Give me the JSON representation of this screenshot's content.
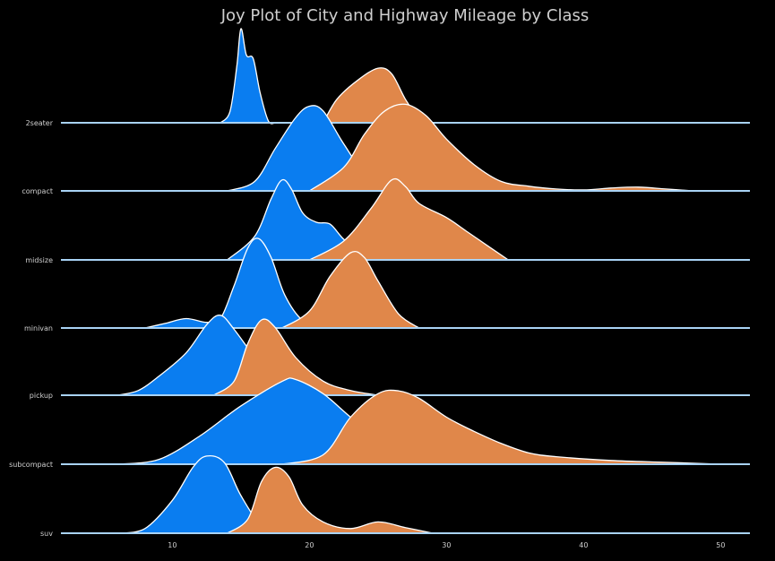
{
  "chart_data": {
    "type": "joyplot",
    "title": "Joy Plot of City and Highway Mileage by Class",
    "xlim": [
      2,
      52
    ],
    "xticks": [
      10,
      20,
      30,
      40,
      50
    ],
    "categories": [
      "2seater",
      "compact",
      "midsize",
      "minivan",
      "pickup",
      "subcompact",
      "suv"
    ],
    "series_colors": {
      "cty": "#0a7df0",
      "hwy": "#e0874a"
    },
    "series": [
      {
        "category": "2seater",
        "cty": [
          [
            13.5,
            0
          ],
          [
            14.2,
            0.12
          ],
          [
            14.7,
            0.6
          ],
          [
            15.0,
            1.0
          ],
          [
            15.4,
            0.72
          ],
          [
            15.9,
            0.68
          ],
          [
            16.4,
            0.32
          ],
          [
            17.0,
            0.02
          ],
          [
            17.5,
            0
          ]
        ],
        "hwy": [
          [
            21.0,
            0
          ],
          [
            22.0,
            0.25
          ],
          [
            23.5,
            0.45
          ],
          [
            25.0,
            0.58
          ],
          [
            26.0,
            0.52
          ],
          [
            27.0,
            0.25
          ],
          [
            28.0,
            0.05
          ],
          [
            28.6,
            0
          ]
        ]
      },
      {
        "category": "compact",
        "cty": [
          [
            14,
            0
          ],
          [
            16,
            0.1
          ],
          [
            17.5,
            0.45
          ],
          [
            19,
            0.78
          ],
          [
            20,
            0.9
          ],
          [
            21,
            0.85
          ],
          [
            22.5,
            0.5
          ],
          [
            24,
            0.2
          ],
          [
            26,
            0.05
          ],
          [
            29,
            0.02
          ],
          [
            32,
            0.03
          ],
          [
            34,
            0.02
          ],
          [
            37,
            0
          ]
        ],
        "hwy": [
          [
            20,
            0
          ],
          [
            22.5,
            0.25
          ],
          [
            24,
            0.6
          ],
          [
            25.5,
            0.85
          ],
          [
            27,
            0.92
          ],
          [
            28.5,
            0.8
          ],
          [
            30,
            0.55
          ],
          [
            32,
            0.28
          ],
          [
            34,
            0.1
          ],
          [
            36,
            0.05
          ],
          [
            38,
            0.02
          ],
          [
            40,
            0.01
          ],
          [
            42,
            0.03
          ],
          [
            44,
            0.04
          ],
          [
            46,
            0.02
          ],
          [
            48,
            0
          ]
        ]
      },
      {
        "category": "midsize",
        "cty": [
          [
            14,
            0
          ],
          [
            16,
            0.25
          ],
          [
            17.2,
            0.65
          ],
          [
            18,
            0.85
          ],
          [
            18.7,
            0.75
          ],
          [
            19.5,
            0.5
          ],
          [
            20.5,
            0.4
          ],
          [
            21.5,
            0.38
          ],
          [
            22.5,
            0.22
          ],
          [
            24,
            0.05
          ],
          [
            25,
            0
          ]
        ],
        "hwy": [
          [
            20,
            0
          ],
          [
            22.5,
            0.2
          ],
          [
            24.5,
            0.55
          ],
          [
            26,
            0.85
          ],
          [
            27,
            0.78
          ],
          [
            28,
            0.6
          ],
          [
            30,
            0.45
          ],
          [
            31.5,
            0.3
          ],
          [
            33,
            0.15
          ],
          [
            34.5,
            0
          ]
        ]
      },
      {
        "category": "minivan",
        "cty": [
          [
            8,
            0
          ],
          [
            9.5,
            0.05
          ],
          [
            11,
            0.1
          ],
          [
            12.5,
            0.06
          ],
          [
            13.5,
            0.1
          ],
          [
            14.5,
            0.45
          ],
          [
            15.5,
            0.85
          ],
          [
            16.3,
            0.95
          ],
          [
            17.2,
            0.75
          ],
          [
            18.2,
            0.35
          ],
          [
            19.5,
            0.08
          ],
          [
            21,
            0
          ]
        ],
        "hwy": [
          [
            18,
            0
          ],
          [
            20,
            0.18
          ],
          [
            21.5,
            0.55
          ],
          [
            23,
            0.8
          ],
          [
            24,
            0.75
          ],
          [
            25,
            0.5
          ],
          [
            26.5,
            0.15
          ],
          [
            28,
            0
          ]
        ]
      },
      {
        "category": "pickup",
        "cty": [
          [
            6,
            0
          ],
          [
            7.5,
            0.05
          ],
          [
            9,
            0.2
          ],
          [
            11,
            0.45
          ],
          [
            12.5,
            0.75
          ],
          [
            13.5,
            0.85
          ],
          [
            14.5,
            0.7
          ],
          [
            16,
            0.4
          ],
          [
            17,
            0.2
          ],
          [
            19,
            0.05
          ],
          [
            21,
            0
          ]
        ],
        "hwy": [
          [
            13,
            0
          ],
          [
            14.5,
            0.15
          ],
          [
            15.5,
            0.55
          ],
          [
            16.5,
            0.8
          ],
          [
            17.5,
            0.72
          ],
          [
            19,
            0.4
          ],
          [
            21,
            0.15
          ],
          [
            23,
            0.05
          ],
          [
            25,
            0
          ]
        ]
      },
      {
        "category": "subcompact",
        "cty": [
          [
            6,
            0
          ],
          [
            9,
            0.05
          ],
          [
            12,
            0.3
          ],
          [
            15,
            0.62
          ],
          [
            18,
            0.88
          ],
          [
            19,
            0.9
          ],
          [
            21,
            0.75
          ],
          [
            23,
            0.5
          ],
          [
            26,
            0.15
          ],
          [
            30,
            0.05
          ],
          [
            34,
            0.02
          ],
          [
            38,
            0
          ]
        ],
        "hwy": [
          [
            18,
            0
          ],
          [
            21,
            0.1
          ],
          [
            23,
            0.5
          ],
          [
            25,
            0.75
          ],
          [
            26.5,
            0.78
          ],
          [
            28,
            0.7
          ],
          [
            30,
            0.5
          ],
          [
            32,
            0.35
          ],
          [
            34,
            0.22
          ],
          [
            36,
            0.12
          ],
          [
            38,
            0.08
          ],
          [
            42,
            0.04
          ],
          [
            46,
            0.02
          ],
          [
            50,
            0
          ]
        ]
      },
      {
        "category": "suv",
        "cty": [
          [
            6,
            0
          ],
          [
            8,
            0.05
          ],
          [
            10,
            0.35
          ],
          [
            11.5,
            0.7
          ],
          [
            12.5,
            0.82
          ],
          [
            13.8,
            0.75
          ],
          [
            15,
            0.4
          ],
          [
            16.5,
            0.08
          ],
          [
            18,
            0
          ]
        ],
        "hwy": [
          [
            14,
            0
          ],
          [
            15.5,
            0.15
          ],
          [
            16.5,
            0.55
          ],
          [
            17.5,
            0.7
          ],
          [
            18.5,
            0.6
          ],
          [
            19.5,
            0.3
          ],
          [
            21,
            0.12
          ],
          [
            23,
            0.05
          ],
          [
            25,
            0.12
          ],
          [
            27,
            0.06
          ],
          [
            29,
            0
          ]
        ]
      }
    ]
  }
}
